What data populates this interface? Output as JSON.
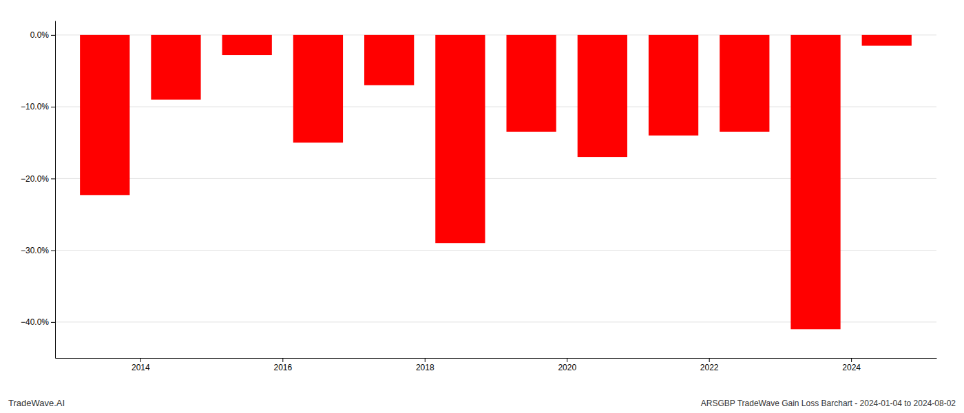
{
  "chart_data": {
    "type": "bar",
    "x": [
      2013.5,
      2014.5,
      2015.5,
      2016.5,
      2017.5,
      2018.5,
      2019.5,
      2020.5,
      2021.5,
      2022.5,
      2023.5,
      2024.5
    ],
    "values": [
      -22.3,
      -9.0,
      -2.8,
      -15.0,
      -7.0,
      -29.0,
      -13.5,
      -17.0,
      -14.0,
      -13.5,
      -41.0,
      -1.5
    ],
    "color": "#ff0000",
    "xlim": [
      2012.8,
      2025.2
    ],
    "xticks": [
      2014,
      2016,
      2018,
      2020,
      2022,
      2024
    ],
    "ylim": [
      -45,
      2
    ],
    "yticks": [
      {
        "value": 0.0,
        "label": "0.0%"
      },
      {
        "value": -10.0,
        "label": "−10.0%"
      },
      {
        "value": -20.0,
        "label": "−20.0%"
      },
      {
        "value": -30.0,
        "label": "−30.0%"
      },
      {
        "value": -40.0,
        "label": "−40.0%"
      }
    ],
    "grid": true,
    "annotations": [
      "TradeWave.AI",
      "ARSGBP TradeWave Gain Loss Barchart - 2024-01-04 to 2024-08-02"
    ]
  }
}
